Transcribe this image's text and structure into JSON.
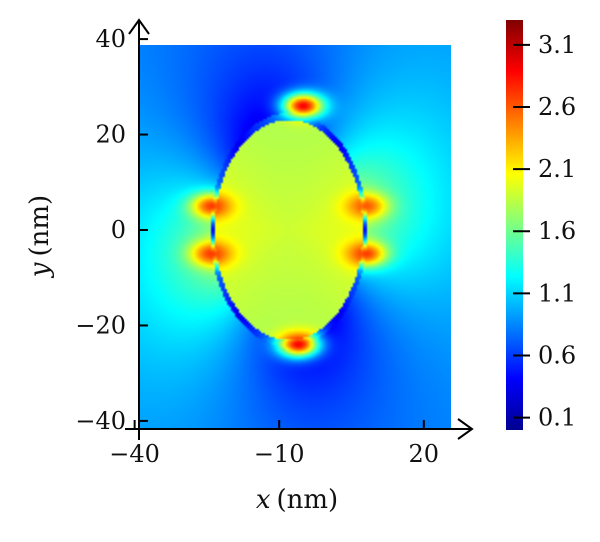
{
  "chart_data": {
    "type": "heatmap",
    "title": "",
    "xlabel_var": "x",
    "xlabel_unit": "(nm)",
    "ylabel_var": "y",
    "ylabel_unit": "(nm)",
    "xlim": [
      -42,
      30
    ],
    "ylim": [
      -44,
      44
    ],
    "x_ticks": [
      -40,
      -10,
      20
    ],
    "x_tick_labels": [
      "−40",
      "−10",
      "20"
    ],
    "y_ticks": [
      -40,
      -20,
      0,
      20,
      40
    ],
    "y_tick_labels": [
      "−40",
      "−20",
      "0",
      "20",
      "40"
    ],
    "colorbar": {
      "range": [
        0.0,
        3.3
      ],
      "ticks": [
        0.1,
        0.6,
        1.1,
        1.6,
        2.1,
        2.6,
        3.1
      ],
      "tick_labels": [
        "0.1",
        "0.6",
        "1.1",
        "1.6",
        "2.1",
        "2.6",
        "3.1"
      ],
      "colormap": "jet",
      "placement": "right"
    },
    "field": {
      "particle_center": [
        -8,
        0
      ],
      "particle_radius_x": 16,
      "particle_radius_y": 24,
      "interior_value": 1.9,
      "background_value": 0.8,
      "hotspots": [
        {
          "x": -5,
          "y": 26,
          "value": 2.9
        },
        {
          "x": -6,
          "y": -24,
          "value": 2.9
        },
        {
          "x": -24,
          "y": 5,
          "value": 2.7
        },
        {
          "x": -24,
          "y": -5,
          "value": 2.7
        },
        {
          "x": 8,
          "y": -5,
          "value": 2.7
        },
        {
          "x": 8,
          "y": 5,
          "value": 2.6
        }
      ]
    }
  }
}
